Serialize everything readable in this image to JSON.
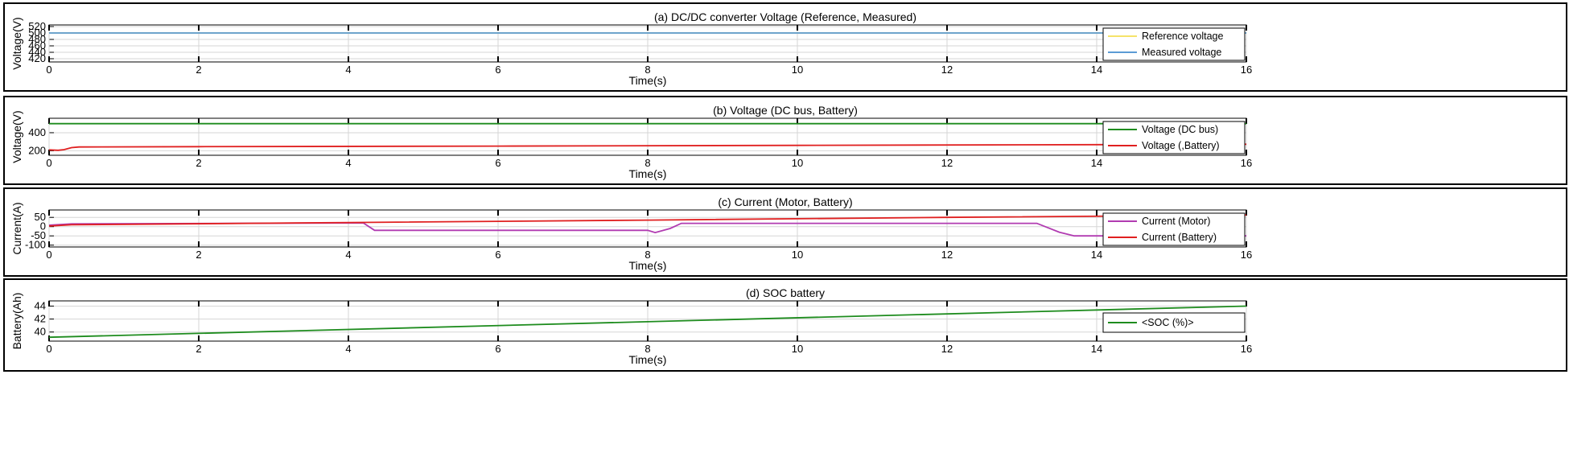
{
  "chart_data": [
    {
      "type": "line",
      "title": "(a) DC/DC converter Voltage (Reference, Measured)",
      "xlabel": "Time(s)",
      "ylabel": "Voltage(V)",
      "xlim": [
        0,
        16
      ],
      "ylim": [
        410,
        525
      ],
      "xticks": [
        0,
        2,
        4,
        6,
        8,
        10,
        12,
        14,
        16
      ],
      "yticks": [
        420,
        440,
        460,
        480,
        500,
        520
      ],
      "ytick_labels": [
        "420",
        "440",
        "460",
        "480",
        "500",
        "520"
      ],
      "grid": true,
      "legend": "right",
      "series": [
        {
          "name": "Reference voltage",
          "color": "#f5e36a",
          "x": [
            0,
            16
          ],
          "y": [
            500,
            500
          ]
        },
        {
          "name": "Measured voltage",
          "color": "#5b9bd5",
          "x": [
            0,
            16
          ],
          "y": [
            500,
            500
          ]
        }
      ]
    },
    {
      "type": "line",
      "title": "(b) Voltage (DC bus, Battery)",
      "xlabel": "Time(s)",
      "ylabel": "Voltage(V)",
      "xlim": [
        0,
        16
      ],
      "ylim": [
        150,
        560
      ],
      "xticks": [
        0,
        2,
        4,
        6,
        8,
        10,
        12,
        14,
        16
      ],
      "yticks": [
        200,
        400
      ],
      "ytick_labels": [
        "200",
        "400"
      ],
      "grid": true,
      "legend": "right",
      "series": [
        {
          "name": "Voltage (DC bus)",
          "color": "#1e8c1e",
          "x": [
            0,
            16
          ],
          "y": [
            500,
            500
          ]
        },
        {
          "name": "Voltage (,Battery)",
          "color": "#e02020",
          "x": [
            0,
            0.12,
            0.2,
            0.3,
            0.4,
            2,
            6,
            10,
            14,
            16
          ],
          "y": [
            210,
            205,
            212,
            235,
            242,
            245,
            252,
            260,
            268,
            272
          ]
        }
      ]
    },
    {
      "type": "line",
      "title": "(c) Current (Motor, Battery)",
      "xlabel": "Time(s)",
      "ylabel": "Current(A)",
      "xlim": [
        0,
        16
      ],
      "ylim": [
        -110,
        90
      ],
      "xticks": [
        0,
        2,
        4,
        6,
        8,
        10,
        12,
        14,
        16
      ],
      "yticks": [
        -100,
        -50,
        0,
        50
      ],
      "ytick_labels": [
        "-100",
        "-50",
        "0",
        "50"
      ],
      "grid": true,
      "legend": "right",
      "series": [
        {
          "name": "Current (Motor)",
          "color": "#b13bb1",
          "x": [
            0,
            0.3,
            4.2,
            4.35,
            8,
            8.1,
            8.3,
            8.45,
            13.2,
            13.5,
            13.7,
            16
          ],
          "y": [
            8,
            15,
            20,
            -20,
            -20,
            -32,
            -10,
            18,
            18,
            -30,
            -50,
            -50
          ]
        },
        {
          "name": "Current (Battery)",
          "color": "#e02020",
          "x": [
            0,
            0.3,
            4,
            8,
            12,
            16
          ],
          "y": [
            3,
            10,
            22,
            35,
            50,
            62
          ]
        }
      ]
    },
    {
      "type": "line",
      "title": "(d) SOC battery",
      "xlabel": "Time(s)",
      "ylabel": "Battery(Ah)",
      "xlim": [
        0,
        16
      ],
      "ylim": [
        38.6,
        44.8
      ],
      "xticks": [
        0,
        2,
        4,
        6,
        8,
        10,
        12,
        14,
        16
      ],
      "yticks": [
        40,
        42,
        44
      ],
      "ytick_labels": [
        "40",
        "42",
        "44"
      ],
      "grid": true,
      "legend": "right",
      "series": [
        {
          "name": "<SOC (%)>",
          "color": "#1e8c1e",
          "x": [
            0,
            16
          ],
          "y": [
            39.2,
            44.0
          ]
        }
      ]
    }
  ]
}
